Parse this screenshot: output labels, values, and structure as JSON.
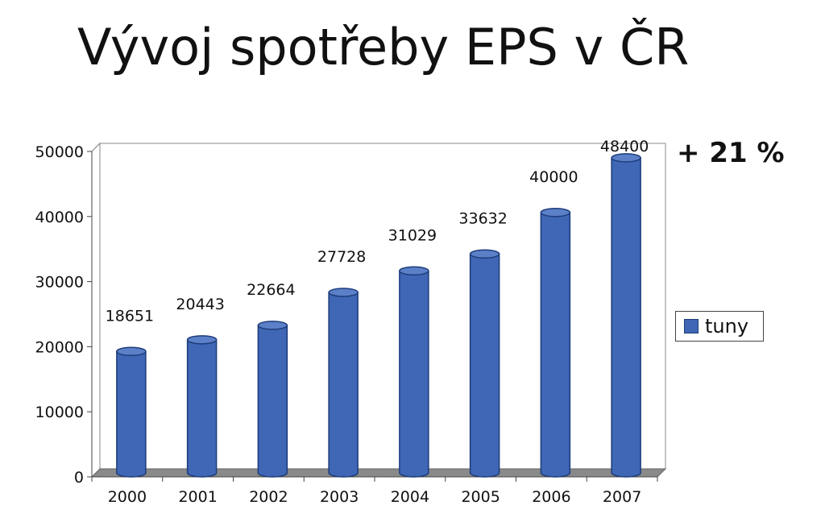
{
  "chart_data": {
    "type": "bar",
    "title": "Vývoj spotřeby EPS v ČR",
    "categories": [
      "2000",
      "2001",
      "2002",
      "2003",
      "2004",
      "2005",
      "2006",
      "2007"
    ],
    "series": [
      {
        "name": "tuny",
        "values": [
          18651,
          20443,
          22664,
          27728,
          31029,
          33632,
          40000,
          48400
        ]
      }
    ],
    "data_labels": [
      "18651",
      "20443",
      "22664",
      "27728",
      "31029",
      "33632",
      "40000",
      "48400"
    ],
    "ylim": [
      0,
      50000
    ],
    "yticks": [
      "0",
      "10000",
      "20000",
      "30000",
      "40000",
      "50000"
    ],
    "grid": true,
    "legend_position": "right",
    "annotation": "+ 21 %",
    "bar_color": "#3f67b5",
    "bar_shade": "#1d3c7a"
  }
}
